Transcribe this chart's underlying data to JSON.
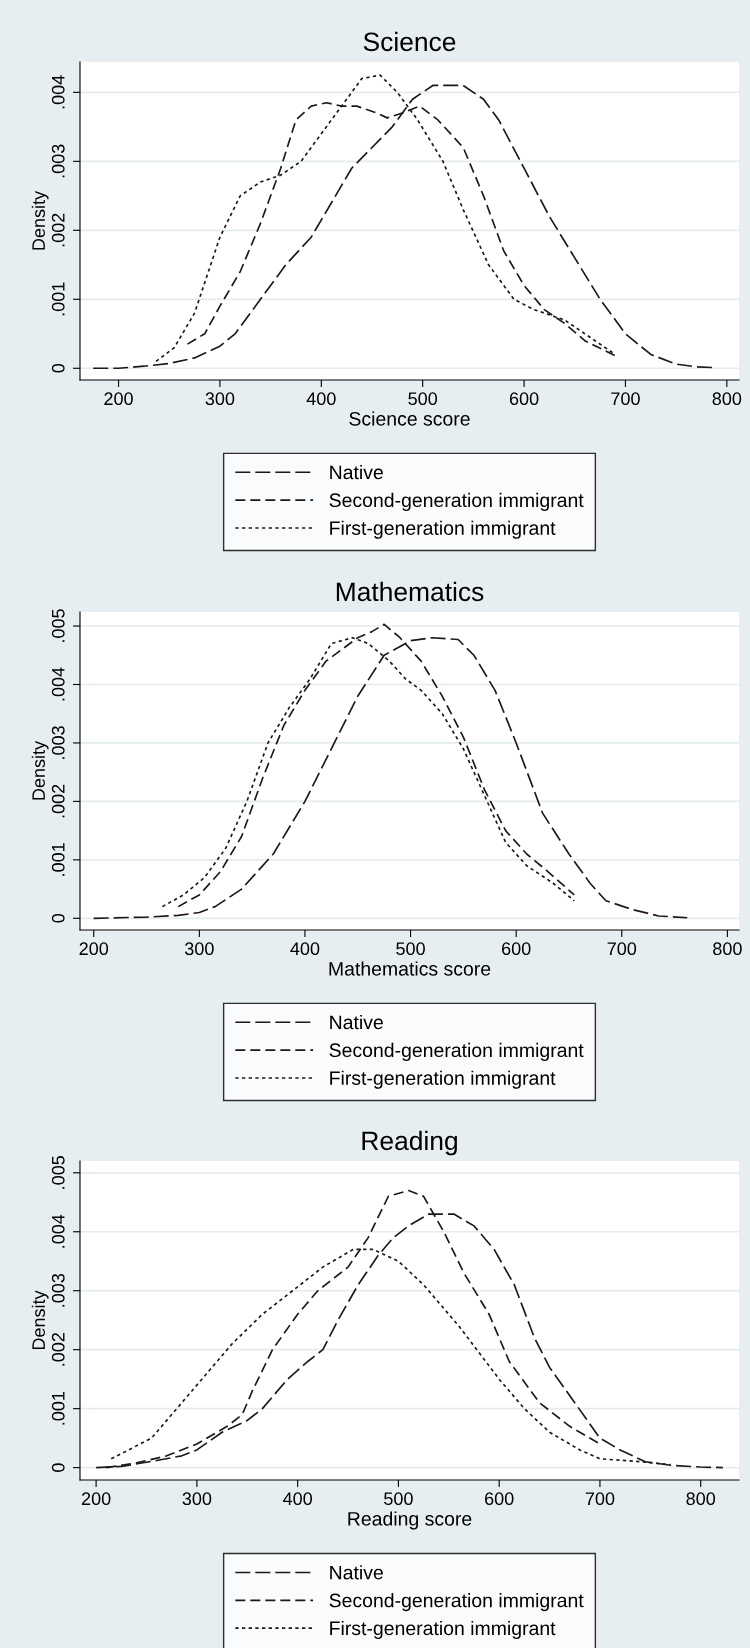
{
  "chart_data": [
    {
      "type": "line",
      "title": "Science",
      "xlabel": "Science score",
      "ylabel": "Density",
      "xlim": [
        162,
        812
      ],
      "ylim": [
        -0.00017,
        0.00444
      ],
      "xticks": [
        200,
        300,
        400,
        500,
        600,
        700,
        800
      ],
      "yticks": [
        0,
        {
          "value": 0.001,
          "label": ".001"
        },
        {
          "value": 0.002,
          "label": ".002"
        },
        {
          "value": 0.003,
          "label": ".003"
        },
        {
          "value": 0.004,
          "label": ".004"
        }
      ],
      "grid": "y",
      "legend": "bottom",
      "series": [
        {
          "name": "Native",
          "color": "#1a1a1a",
          "line_style": "dashed",
          "x": [
            175,
            200,
            225,
            250,
            275,
            300,
            315,
            340,
            365,
            390,
            410,
            430,
            450,
            470,
            490,
            510,
            525,
            540,
            560,
            575,
            600,
            625,
            650,
            675,
            700,
            725,
            750,
            770,
            787
          ],
          "values": [
            0,
            0,
            3e-05,
            7e-05,
            0.00015,
            0.00032,
            0.0005,
            0.001,
            0.0015,
            0.0019,
            0.0024,
            0.0029,
            0.0032,
            0.0035,
            0.0039,
            0.0041,
            0.0041,
            0.0041,
            0.0039,
            0.0036,
            0.0029,
            0.0022,
            0.0016,
            0.001,
            0.0005,
            0.0002,
            6e-05,
            2e-05,
            1e-05
          ]
        },
        {
          "name": "Second-generation immigrant",
          "color": "#1a1a1a",
          "line_style": "dashed",
          "x": [
            268,
            285,
            300,
            320,
            340,
            360,
            375,
            390,
            405,
            420,
            435,
            455,
            465,
            480,
            497,
            515,
            540,
            560,
            580,
            600,
            620,
            640,
            660,
            690
          ],
          "values": [
            0.00035,
            0.0005,
            0.0009,
            0.0014,
            0.0021,
            0.0029,
            0.0036,
            0.0038,
            0.00385,
            0.0038,
            0.0038,
            0.0037,
            0.00363,
            0.0037,
            0.0038,
            0.0036,
            0.0032,
            0.0025,
            0.0017,
            0.0012,
            0.00085,
            0.00065,
            0.0004,
            0.00018
          ]
        },
        {
          "name": "First-generation immigrant",
          "color": "#1a1a1a",
          "line_style": "dotted",
          "x": [
            237,
            255,
            275,
            300,
            320,
            340,
            360,
            380,
            400,
            420,
            440,
            458,
            475,
            495,
            520,
            540,
            565,
            590,
            610,
            640,
            665,
            690
          ],
          "values": [
            0.0001,
            0.0003,
            0.0008,
            0.0019,
            0.0025,
            0.0027,
            0.0028,
            0.003,
            0.0034,
            0.0038,
            0.0042,
            0.00425,
            0.004,
            0.0036,
            0.003,
            0.0023,
            0.0015,
            0.001,
            0.00085,
            0.0007,
            0.00045,
            0.0002
          ]
        }
      ]
    },
    {
      "type": "line",
      "title": "Mathematics",
      "xlabel": "Mathematics score",
      "ylabel": "Density",
      "xlim": [
        187,
        811
      ],
      "ylim": [
        -0.0002,
        0.00524
      ],
      "xticks": [
        200,
        300,
        400,
        500,
        600,
        700,
        800
      ],
      "yticks": [
        0,
        {
          "value": 0.001,
          "label": ".001"
        },
        {
          "value": 0.002,
          "label": ".002"
        },
        {
          "value": 0.003,
          "label": ".003"
        },
        {
          "value": 0.004,
          "label": ".004"
        },
        {
          "value": 0.005,
          "label": ".005"
        }
      ],
      "grid": "y",
      "legend": "bottom",
      "series": [
        {
          "name": "Native",
          "color": "#1a1a1a",
          "line_style": "dashed",
          "x": [
            200,
            250,
            280,
            300,
            315,
            340,
            370,
            400,
            425,
            450,
            475,
            500,
            520,
            545,
            560,
            580,
            600,
            625,
            650,
            670,
            685,
            710,
            735,
            762
          ],
          "values": [
            0,
            2e-05,
            5e-05,
            0.0001,
            0.0002,
            0.0005,
            0.0011,
            0.002,
            0.0029,
            0.0038,
            0.0045,
            0.00475,
            0.0048,
            0.00477,
            0.0045,
            0.0039,
            0.003,
            0.0018,
            0.0011,
            0.0006,
            0.0003,
            0.00015,
            4e-05,
            1e-05
          ]
        },
        {
          "name": "Second-generation immigrant",
          "color": "#1a1a1a",
          "line_style": "dashed",
          "x": [
            280,
            300,
            320,
            340,
            360,
            380,
            400,
            420,
            435,
            450,
            463,
            475,
            490,
            510,
            530,
            550,
            570,
            590,
            610,
            630,
            655
          ],
          "values": [
            0.0002,
            0.0004,
            0.0008,
            0.0014,
            0.0024,
            0.0033,
            0.0039,
            0.0044,
            0.0046,
            0.0048,
            0.0049,
            0.00503,
            0.0048,
            0.0044,
            0.0038,
            0.0031,
            0.0022,
            0.0015,
            0.0011,
            0.0008,
            0.0004
          ]
        },
        {
          "name": "First-generation immigrant",
          "color": "#1a1a1a",
          "line_style": "dotted",
          "x": [
            265,
            285,
            305,
            325,
            345,
            365,
            385,
            405,
            425,
            445,
            460,
            480,
            495,
            510,
            530,
            550,
            570,
            590,
            610,
            635,
            655
          ],
          "values": [
            0.0002,
            0.0004,
            0.0007,
            0.0012,
            0.002,
            0.003,
            0.0036,
            0.0041,
            0.0047,
            0.0048,
            0.0047,
            0.0044,
            0.0041,
            0.0039,
            0.0035,
            0.0029,
            0.0021,
            0.0013,
            0.0009,
            0.0006,
            0.0003
          ]
        }
      ]
    },
    {
      "type": "line",
      "title": "Reading",
      "xlabel": "Reading score",
      "ylabel": "Density",
      "xlim": [
        184,
        838
      ],
      "ylim": [
        -0.00021,
        0.0052
      ],
      "xticks": [
        200,
        300,
        400,
        500,
        600,
        700,
        800
      ],
      "yticks": [
        0,
        {
          "value": 0.001,
          "label": ".001"
        },
        {
          "value": 0.002,
          "label": ".002"
        },
        {
          "value": 0.003,
          "label": ".003"
        },
        {
          "value": 0.004,
          "label": ".004"
        },
        {
          "value": 0.005,
          "label": ".005"
        }
      ],
      "grid": "y",
      "legend": "bottom",
      "series": [
        {
          "name": "Native",
          "color": "#1a1a1a",
          "line_style": "dashed",
          "x": [
            200,
            225,
            260,
            285,
            300,
            325,
            350,
            365,
            390,
            410,
            425,
            440,
            460,
            480,
            495,
            510,
            530,
            555,
            575,
            595,
            615,
            635,
            650,
            675,
            700,
            720,
            745,
            770,
            800,
            822
          ],
          "values": [
            0,
            2e-05,
            0.00012,
            0.0002,
            0.0003,
            0.0006,
            0.0008,
            0.001,
            0.0015,
            0.0018,
            0.002,
            0.0025,
            0.0031,
            0.0036,
            0.0039,
            0.0041,
            0.0043,
            0.0043,
            0.0041,
            0.0037,
            0.0031,
            0.0022,
            0.0017,
            0.0011,
            0.0005,
            0.0003,
            0.0001,
            4e-05,
            1e-05,
            0
          ]
        },
        {
          "name": "Second-generation immigrant",
          "color": "#1a1a1a",
          "line_style": "dashed",
          "x": [
            210,
            240,
            270,
            300,
            330,
            345,
            355,
            375,
            400,
            420,
            450,
            470,
            490,
            510,
            525,
            545,
            565,
            590,
            610,
            640,
            670,
            700
          ],
          "values": [
            0,
            8e-05,
            0.0002,
            0.0004,
            0.0007,
            0.0009,
            0.0013,
            0.002,
            0.0026,
            0.003,
            0.0034,
            0.0039,
            0.0046,
            0.0047,
            0.0046,
            0.004,
            0.0033,
            0.0026,
            0.0018,
            0.0011,
            0.0007,
            0.0004
          ]
        },
        {
          "name": "First-generation immigrant",
          "color": "#1a1a1a",
          "line_style": "dotted",
          "x": [
            215,
            255,
            280,
            305,
            335,
            365,
            395,
            425,
            455,
            475,
            500,
            525,
            560,
            600,
            625,
            650,
            680,
            700,
            740,
            770
          ],
          "values": [
            0.00015,
            0.0005,
            0.001,
            0.0015,
            0.0021,
            0.0026,
            0.003,
            0.0034,
            0.0037,
            0.0037,
            0.0035,
            0.0031,
            0.0024,
            0.0015,
            0.001,
            0.0006,
            0.0003,
            0.00015,
            0.0001,
            5e-05
          ]
        }
      ]
    }
  ]
}
